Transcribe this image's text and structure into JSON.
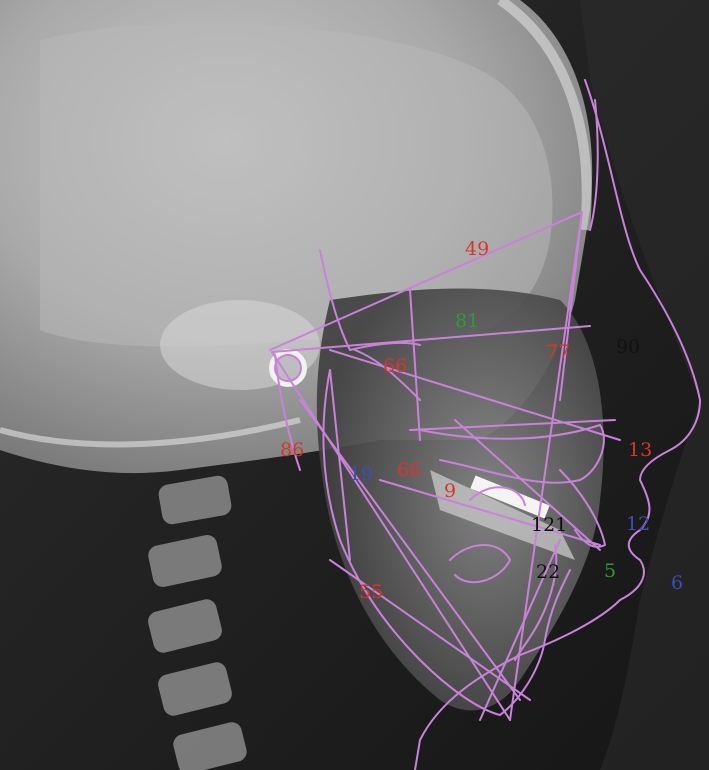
{
  "image": {
    "subject": "Lateral cephalometric radiograph with superimposed tracing",
    "tracing_color": "#c883d9",
    "label_colors": {
      "red": "#d7362c",
      "black": "#111111",
      "blue": "#3a50b4",
      "green": "#2f9a3c"
    }
  },
  "annotations": [
    {
      "id": "49",
      "text": "49",
      "color": "red"
    },
    {
      "id": "81",
      "text": "81",
      "color": "green"
    },
    {
      "id": "90",
      "text": "90",
      "color": "black"
    },
    {
      "id": "77",
      "text": "77",
      "color": "red"
    },
    {
      "id": "66a",
      "text": "66",
      "color": "red"
    },
    {
      "id": "13",
      "text": "13",
      "color": "red"
    },
    {
      "id": "86",
      "text": "86",
      "color": "red"
    },
    {
      "id": "19",
      "text": "19",
      "color": "blue"
    },
    {
      "id": "66b",
      "text": "66",
      "color": "red"
    },
    {
      "id": "9",
      "text": "9",
      "color": "red"
    },
    {
      "id": "121",
      "text": "121",
      "color": "black"
    },
    {
      "id": "12",
      "text": "12",
      "color": "blue"
    },
    {
      "id": "22",
      "text": "22",
      "color": "black"
    },
    {
      "id": "5",
      "text": "5",
      "color": "green"
    },
    {
      "id": "55",
      "text": "55",
      "color": "red"
    },
    {
      "id": "6",
      "text": "6",
      "color": "blue"
    }
  ]
}
